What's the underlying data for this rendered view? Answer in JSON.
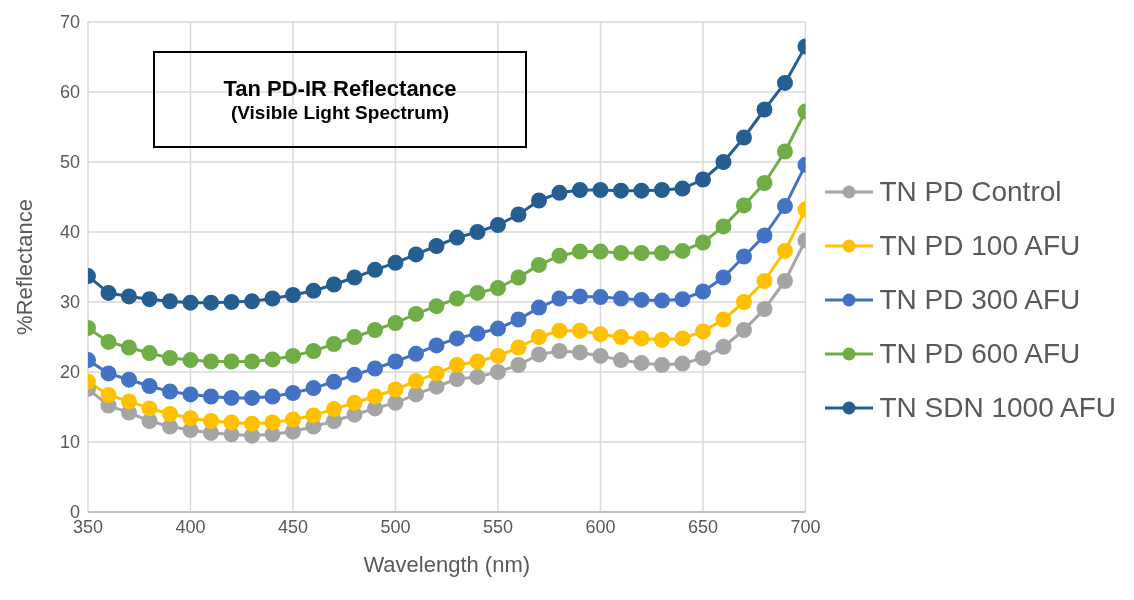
{
  "chart_data": {
    "type": "line",
    "title": "Tan PD-IR Reflectance",
    "subtitle": "(Visible Light Spectrum)",
    "xlabel": "Wavelength (nm)",
    "ylabel": "%Reflectance",
    "x": [
      350,
      360,
      370,
      380,
      390,
      400,
      410,
      420,
      430,
      440,
      450,
      460,
      470,
      480,
      490,
      500,
      510,
      520,
      530,
      540,
      550,
      560,
      570,
      580,
      590,
      600,
      610,
      620,
      630,
      640,
      650,
      660,
      670,
      680,
      690,
      700
    ],
    "series": [
      {
        "name": "TN PD Control",
        "color": "#a5a5a5",
        "values": [
          17.6,
          15.2,
          14.2,
          13.0,
          12.2,
          11.7,
          11.3,
          11.1,
          10.9,
          11.1,
          11.5,
          12.2,
          13.0,
          13.9,
          14.8,
          15.6,
          16.8,
          17.9,
          19.0,
          19.3,
          20.0,
          21.0,
          22.5,
          23.0,
          22.8,
          22.3,
          21.7,
          21.3,
          21.0,
          21.2,
          22.0,
          23.6,
          26.0,
          29.0,
          33.0,
          38.8
        ]
      },
      {
        "name": "TN PD 100 AFU",
        "color": "#ffc000",
        "values": [
          18.6,
          16.7,
          15.8,
          14.8,
          14.0,
          13.4,
          13.0,
          12.8,
          12.6,
          12.8,
          13.2,
          13.8,
          14.7,
          15.6,
          16.5,
          17.5,
          18.7,
          19.8,
          21.0,
          21.5,
          22.3,
          23.5,
          25.0,
          25.9,
          25.9,
          25.4,
          25.0,
          24.8,
          24.6,
          24.8,
          25.8,
          27.5,
          30.0,
          33.0,
          37.3,
          43.2
        ]
      },
      {
        "name": "TN PD 300 AFU",
        "color": "#4472c4",
        "values": [
          21.7,
          19.8,
          18.9,
          18.0,
          17.2,
          16.8,
          16.5,
          16.3,
          16.3,
          16.5,
          17.0,
          17.7,
          18.6,
          19.6,
          20.5,
          21.5,
          22.6,
          23.8,
          24.8,
          25.5,
          26.2,
          27.5,
          29.2,
          30.5,
          30.8,
          30.7,
          30.5,
          30.3,
          30.2,
          30.4,
          31.5,
          33.5,
          36.5,
          39.5,
          43.7,
          49.6
        ]
      },
      {
        "name": "TN PD 600 AFU",
        "color": "#70ad47",
        "values": [
          26.3,
          24.3,
          23.5,
          22.7,
          22.0,
          21.7,
          21.5,
          21.5,
          21.5,
          21.8,
          22.3,
          23.0,
          24.0,
          25.0,
          26.0,
          27.0,
          28.3,
          29.4,
          30.5,
          31.3,
          32.0,
          33.5,
          35.3,
          36.6,
          37.2,
          37.2,
          37.0,
          37.0,
          37.0,
          37.3,
          38.5,
          40.8,
          43.8,
          47.0,
          51.5,
          57.2
        ]
      },
      {
        "name": "TN SDN 1000 AFU",
        "color": "#255e91",
        "values": [
          33.7,
          31.3,
          30.8,
          30.4,
          30.1,
          29.9,
          29.9,
          30.0,
          30.1,
          30.5,
          31.0,
          31.6,
          32.5,
          33.5,
          34.6,
          35.6,
          36.8,
          38.0,
          39.2,
          40.0,
          41.0,
          42.5,
          44.5,
          45.6,
          46.0,
          46.0,
          45.9,
          45.9,
          46.0,
          46.2,
          47.5,
          50.0,
          53.5,
          57.5,
          61.3,
          66.5
        ]
      }
    ],
    "xlim": [
      350,
      700
    ],
    "xticks": [
      350,
      400,
      450,
      500,
      550,
      600,
      650,
      700
    ],
    "ylim": [
      0,
      70
    ],
    "yticks": [
      0,
      10,
      20,
      30,
      40,
      50,
      60,
      70
    ],
    "grid": true,
    "legend": "right",
    "marker": "circle",
    "line_style": "solid"
  }
}
